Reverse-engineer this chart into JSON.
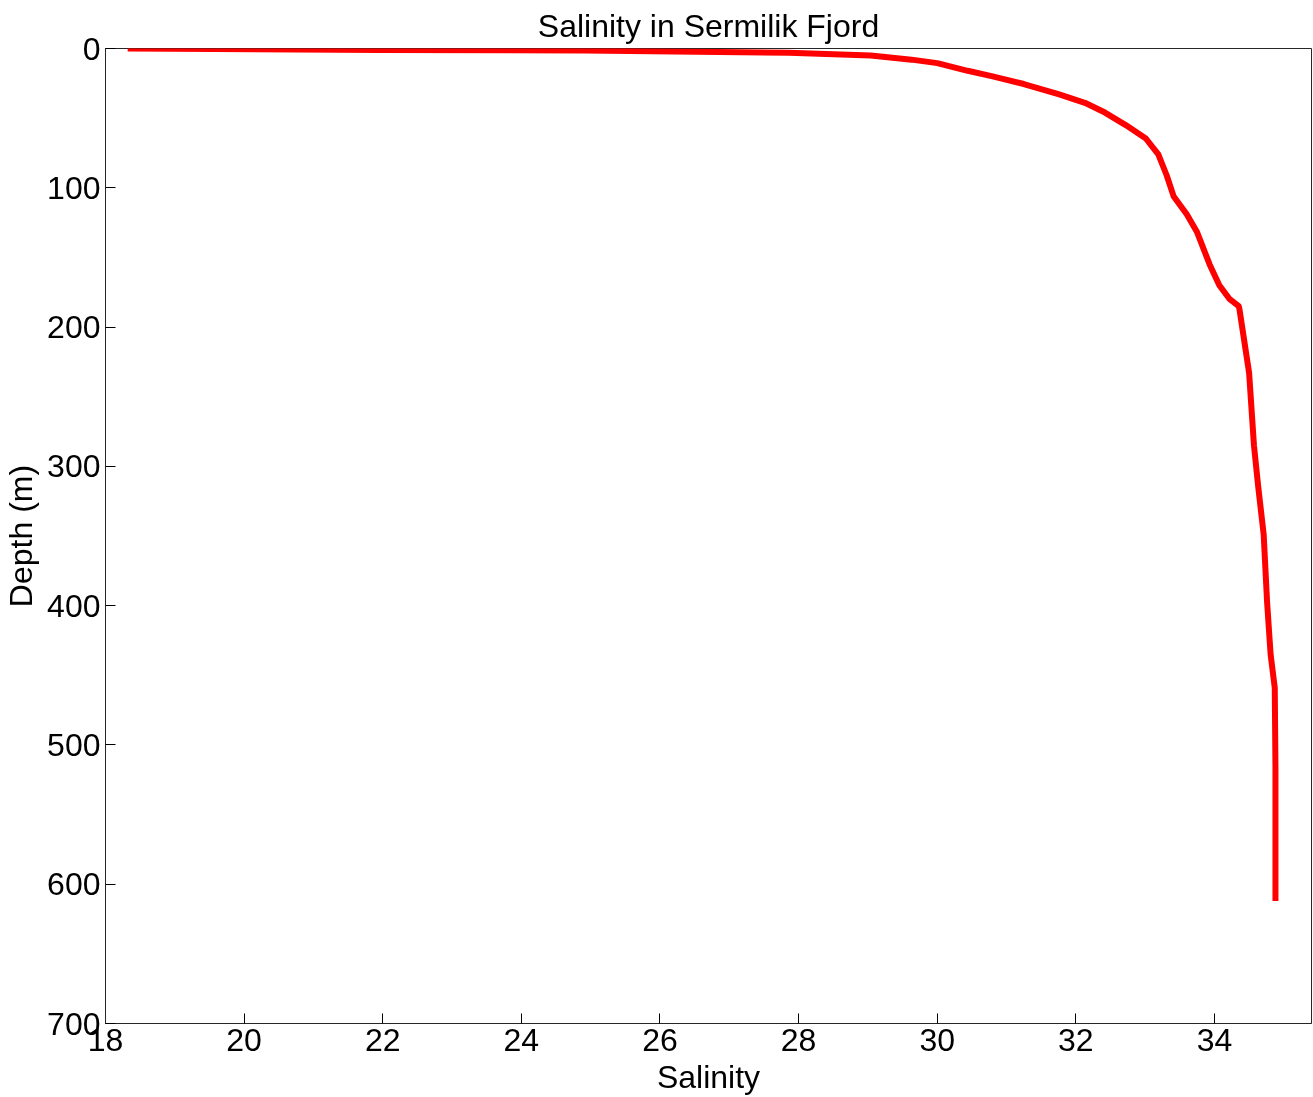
{
  "chart_data": {
    "type": "line",
    "title": "Salinity in Sermilik Fjord",
    "xlabel": "Salinity",
    "ylabel": "Depth (m)",
    "xlim": [
      18,
      35.4
    ],
    "ylim": [
      700,
      0
    ],
    "xticks": [
      18,
      20,
      22,
      24,
      26,
      28,
      30,
      32,
      34
    ],
    "yticks": [
      0,
      100,
      200,
      300,
      400,
      500,
      600,
      700
    ],
    "grid": false,
    "series": [
      {
        "color": "#ff0000",
        "x": [
          18.32,
          21.96,
          24.91,
          27.86,
          29.04,
          29.63,
          30.0,
          30.44,
          30.8,
          31.25,
          31.76,
          32.13,
          32.42,
          32.72,
          33.01,
          33.19,
          33.31,
          33.41,
          33.6,
          33.75,
          33.93,
          34.07,
          34.22,
          34.35,
          34.36,
          34.5,
          34.57,
          34.63,
          34.71,
          34.76,
          34.81,
          34.87,
          34.88,
          34.88
        ],
        "values": [
          0,
          1,
          1.5,
          3,
          5,
          8,
          10.5,
          16,
          20,
          25.5,
          33,
          39,
          46,
          55,
          64.6,
          76,
          91,
          106,
          119,
          132,
          155,
          170,
          180,
          185,
          187,
          233,
          285,
          314,
          349,
          398,
          435,
          459,
          516,
          612
        ]
      }
    ]
  }
}
